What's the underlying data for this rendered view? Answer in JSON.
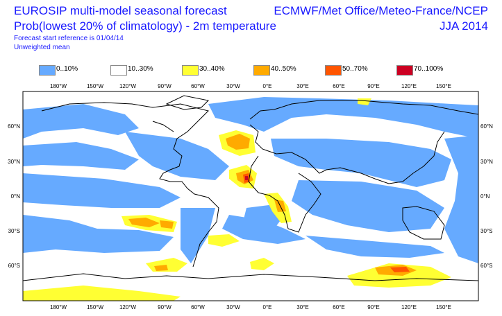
{
  "header": {
    "title_line1": "EUROSIP multi-model seasonal forecast",
    "title_line2": "Prob(lowest 20% of climatology) - 2m temperature",
    "title_line3": "Forecast start reference is 01/04/14",
    "title_line4": "Unweighted mean",
    "producers": "ECMWF/Met Office/Meteo-France/NCEP",
    "season": "JJA 2014"
  },
  "legend": [
    {
      "label": "0..10%",
      "color": "#66aaff"
    },
    {
      "label": "10..30%",
      "color": "#ffffff"
    },
    {
      "label": "30..40%",
      "color": "#ffff33"
    },
    {
      "label": "40..50%",
      "color": "#ffaa00"
    },
    {
      "label": "50..70%",
      "color": "#ff5500"
    },
    {
      "label": "70..100%",
      "color": "#cc0022"
    }
  ],
  "axes": {
    "lon_labels": [
      "180°W",
      "150°W",
      "120°W",
      "90°W",
      "60°W",
      "30°W",
      "0°E",
      "30°E",
      "60°E",
      "90°E",
      "120°E",
      "150°E"
    ],
    "lat_labels_left": [
      "60°N",
      "30°N",
      "0°N",
      "30°S",
      "60°S"
    ],
    "lat_labels_right": [
      "60°N",
      "30°N",
      "0°N",
      "30°S",
      "60°S"
    ]
  }
}
